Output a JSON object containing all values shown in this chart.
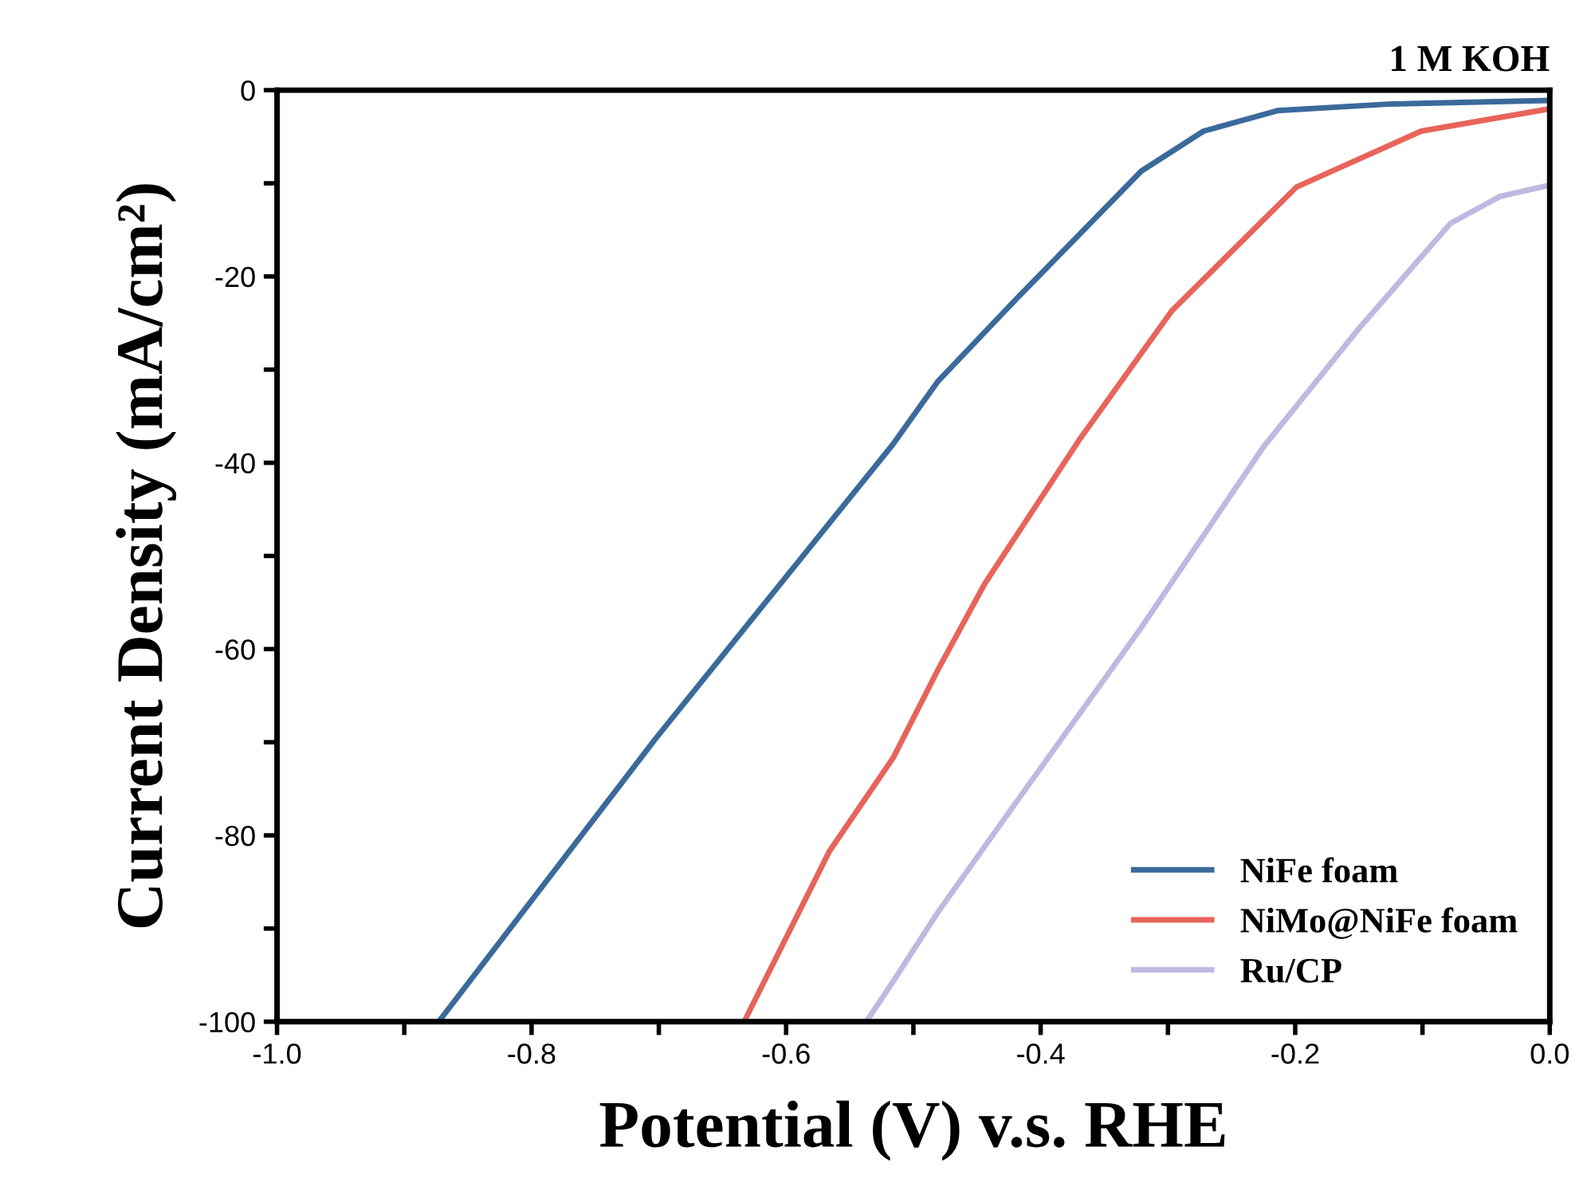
{
  "chart_data": {
    "type": "line",
    "xlabel": "Potential (V) v.s. RHE",
    "ylabel": "Current Density (mA/cm²)",
    "annotations": [
      "1 M KOH"
    ],
    "xlim": [
      -1.0,
      0.0
    ],
    "ylim": [
      -100,
      0
    ],
    "xticks": [
      {
        "value": -1.0,
        "label": "-1.0"
      },
      {
        "value": -0.9,
        "label": null
      },
      {
        "value": -0.8,
        "label": "-0.8"
      },
      {
        "value": -0.7,
        "label": null
      },
      {
        "value": -0.6,
        "label": "-0.6"
      },
      {
        "value": -0.5,
        "label": null
      },
      {
        "value": -0.4,
        "label": "-0.4"
      },
      {
        "value": -0.3,
        "label": null
      },
      {
        "value": -0.2,
        "label": "-0.2"
      },
      {
        "value": -0.1,
        "label": null
      },
      {
        "value": 0.0,
        "label": "0.0"
      }
    ],
    "yticks": [
      -100,
      {
        "value": -90,
        "label": null
      },
      -80,
      {
        "value": -70,
        "label": null
      },
      -60,
      {
        "value": -50,
        "label": null
      },
      -40,
      {
        "value": -30,
        "label": null
      },
      -20,
      {
        "value": -10,
        "label": null
      },
      0
    ],
    "grid": false,
    "legend": "bottom right",
    "line_style": "solid",
    "marker": "none",
    "series": [
      {
        "name": "NiFe foam",
        "color": "#3a6a9b",
        "x": [
          -0.873,
          -0.703,
          -0.516,
          -0.481,
          -0.419,
          -0.321,
          -0.272,
          -0.214,
          -0.127,
          0.0
        ],
        "values": [
          -100,
          -69.7,
          -38.0,
          -31.3,
          -22.4,
          -8.7,
          -4.4,
          -2.2,
          -1.5,
          -1.1
        ]
      },
      {
        "name": "NiMo@NiFe foam",
        "color": "#e8645a",
        "x": [
          -0.633,
          -0.566,
          -0.516,
          -0.481,
          -0.444,
          -0.37,
          -0.297,
          -0.199,
          -0.101,
          0.0
        ],
        "values": [
          -100,
          -81.7,
          -71.7,
          -62.3,
          -53.0,
          -37.6,
          -23.7,
          -10.4,
          -4.4,
          -2.0
        ]
      },
      {
        "name": "Ru/CP",
        "color": "#c0b8e0",
        "x": [
          -0.537,
          -0.516,
          -0.481,
          -0.419,
          -0.321,
          -0.225,
          -0.15,
          -0.078,
          -0.039,
          0.0
        ],
        "values": [
          -100,
          -95.7,
          -88.3,
          -76.4,
          -57.7,
          -38.3,
          -25.6,
          -14.3,
          -11.4,
          -10.2
        ]
      }
    ]
  }
}
